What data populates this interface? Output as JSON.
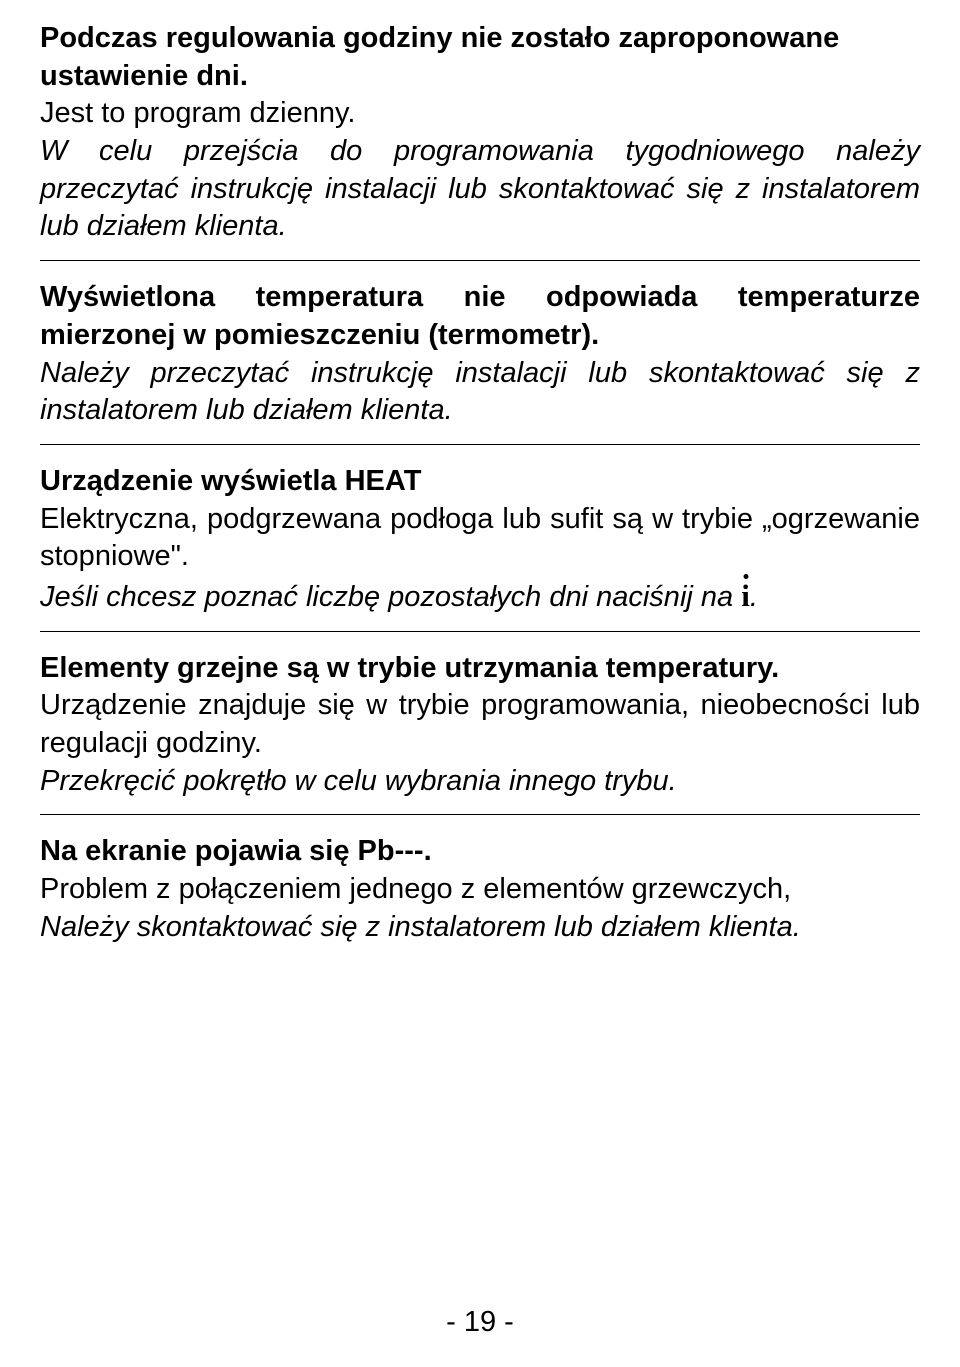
{
  "sections": [
    {
      "bold1": "Podczas regulowania godziny nie zostało zaproponowane ustawienie dni.",
      "plain1": "Jest to program dzienny.",
      "italic1": "W celu przejścia do programowania tygodniowego należy przeczytać instrukcję instalacji lub skontaktować się z instalatorem lub działem klienta."
    },
    {
      "bold1": "Wyświetlona temperatura nie odpowiada temperaturze mierzonej w pomieszczeniu (termometr).",
      "italic1": "Należy przeczytać instrukcję instalacji lub skontaktować się z instalatorem lub działem klienta."
    },
    {
      "bold1": "Urządzenie wyświetla HEAT",
      "plain1": "Elektryczna, podgrzewana podłoga lub sufit są w trybie „ogrzewanie stopniowe\".",
      "italic_pre": "Jeśli chcesz poznać liczbę pozostałych dni naciśnij na ",
      "icon_glyph": "i",
      "italic_post": "."
    },
    {
      "bold1": "Elementy grzejne są w trybie utrzymania temperatury.",
      "plain1": "Urządzenie znajduje się w trybie programowania, nieobecności lub regulacji godziny.",
      "italic1": "Przekręcić pokrętło w celu wybrania innego trybu."
    },
    {
      "bold1": "Na ekranie pojawia się Pb---.",
      "plain1": "Problem z połączeniem jednego z elementów grzewczych,",
      "italic1": "Należy skontaktować się z instalatorem lub działem klienta."
    }
  ],
  "page_number": "- 19 -"
}
